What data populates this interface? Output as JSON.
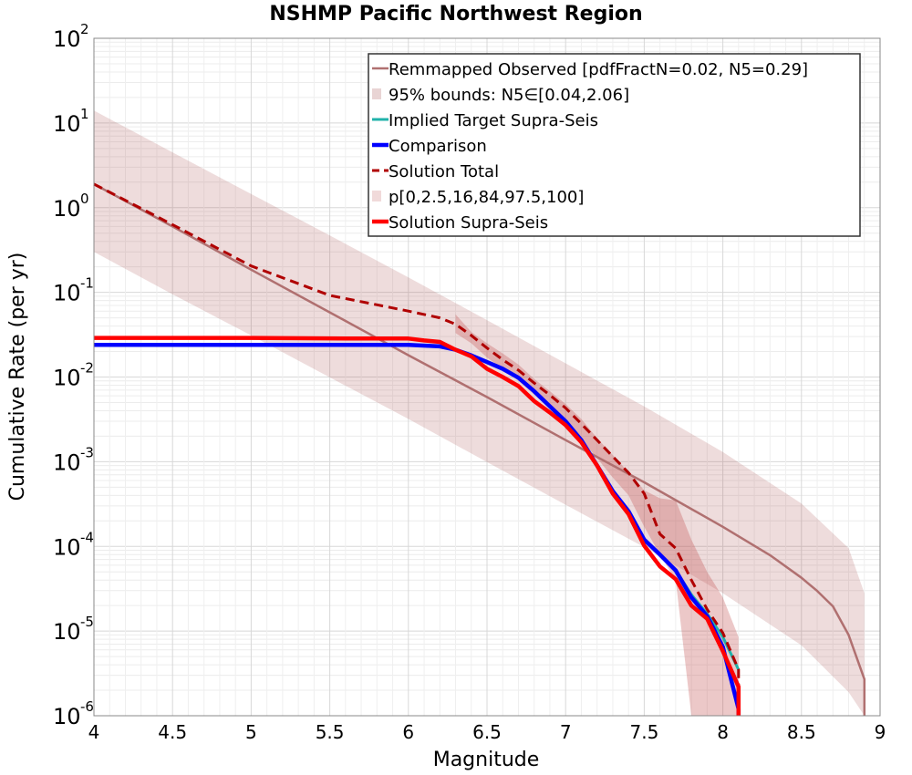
{
  "chart_data": {
    "type": "line",
    "title": "NSHMP Pacific Northwest Region",
    "xlabel": "Magnitude",
    "ylabel": "Cumulative Rate (per yr)",
    "xlim": [
      4,
      9
    ],
    "ylim": [
      1e-06,
      100
    ],
    "yscale": "log",
    "x_ticks": [
      "4",
      "4.5",
      "5",
      "5.5",
      "6",
      "6.5",
      "7",
      "7.5",
      "8",
      "8.5",
      "9"
    ],
    "y_ticks": [
      {
        "base": "10",
        "exp": "-6"
      },
      {
        "base": "10",
        "exp": "-5"
      },
      {
        "base": "10",
        "exp": "-4"
      },
      {
        "base": "10",
        "exp": "-3"
      },
      {
        "base": "10",
        "exp": "-2"
      },
      {
        "base": "10",
        "exp": "-1"
      },
      {
        "base": "10",
        "exp": "0"
      },
      {
        "base": "10",
        "exp": "1"
      },
      {
        "base": "10",
        "exp": "2"
      }
    ],
    "grid": true,
    "legend_position": "top-right",
    "bands": [
      {
        "legend": "95% bounds: N5∈[0.04,2.06]",
        "color": "#b06060",
        "opacity": 0.22,
        "x": [
          4.0,
          4.5,
          5.0,
          5.5,
          6.0,
          6.5,
          7.0,
          7.5,
          8.0,
          8.5,
          8.8,
          8.9
        ],
        "upper": [
          14,
          4.5,
          1.45,
          0.47,
          0.15,
          0.047,
          0.0145,
          0.0045,
          0.0013,
          0.00032,
          9.5e-05,
          2.8e-05
        ],
        "lower": [
          0.3,
          0.095,
          0.031,
          0.0099,
          0.0032,
          0.00099,
          0.00031,
          9.8e-05,
          2.8e-05,
          6.8e-06,
          1.9e-06,
          1e-06
        ]
      },
      {
        "legend": "p[0,2.5,16,84,97.5,100]",
        "color": "#c04848",
        "opacity": 0.3,
        "x": [
          6.3,
          6.4,
          6.5,
          6.6,
          6.7,
          6.8,
          6.9,
          7.0,
          7.1,
          7.2,
          7.3,
          7.4,
          7.5,
          7.6,
          7.7,
          7.8,
          7.9,
          8.0,
          8.1
        ],
        "upper": [
          0.055,
          0.034,
          0.025,
          0.019,
          0.014,
          0.0095,
          0.0068,
          0.0048,
          0.0032,
          0.0019,
          0.0012,
          0.00075,
          0.00046,
          0.00037,
          0.00035,
          0.00012,
          5e-05,
          2.5e-05,
          8.5e-06
        ],
        "lower": [
          0.033,
          0.025,
          0.017,
          0.0125,
          0.009,
          0.0062,
          0.0042,
          0.0029,
          0.0018,
          0.0011,
          0.00065,
          0.0004,
          0.00017,
          8e-05,
          4e-05,
          1e-06,
          1e-06,
          1e-06,
          1e-06
        ]
      }
    ],
    "series": [
      {
        "name": "Remmapped Observed [pdfFractN=0.02, N5=0.29]",
        "color": "#b07070",
        "width": 2.5,
        "dash": "",
        "x": [
          4.0,
          4.5,
          5.0,
          5.5,
          6.0,
          6.5,
          7.0,
          7.5,
          8.0,
          8.3,
          8.5,
          8.6,
          8.7,
          8.8,
          8.9,
          8.9
        ],
        "y": [
          1.9,
          0.6,
          0.185,
          0.058,
          0.0181,
          0.0058,
          0.0018,
          0.00057,
          0.00017,
          7.88e-05,
          4.26e-05,
          2.98e-05,
          1.96e-05,
          9e-06,
          2.7e-06,
          1e-06
        ]
      },
      {
        "name": "Implied Target Supra-Seis",
        "color": "#20b2aa",
        "width": 3,
        "dash": "",
        "x": [
          4.0,
          5.0,
          6.0,
          6.2,
          6.3,
          6.4,
          6.5,
          6.6,
          6.7,
          6.8,
          6.9,
          7.0,
          7.1,
          7.2,
          7.3,
          7.4,
          7.5,
          7.6,
          7.7,
          7.8,
          7.9,
          8.0,
          8.1
        ],
        "y": [
          0.024,
          0.024,
          0.024,
          0.023,
          0.021,
          0.018,
          0.015,
          0.0125,
          0.0098,
          0.0068,
          0.0045,
          0.003,
          0.0018,
          0.0009,
          0.00045,
          0.00026,
          0.00012,
          8e-05,
          5.2e-05,
          2.7e-05,
          1.6e-05,
          8.5e-06,
          3.5e-06
        ]
      },
      {
        "name": "Comparison",
        "color": "#0000ff",
        "width": 4.5,
        "dash": "",
        "x": [
          4.0,
          5.0,
          6.0,
          6.2,
          6.3,
          6.4,
          6.5,
          6.6,
          6.7,
          6.8,
          6.9,
          7.0,
          7.1,
          7.2,
          7.3,
          7.4,
          7.5,
          7.6,
          7.7,
          7.8,
          7.9,
          8.0,
          8.1,
          8.1
        ],
        "y": [
          0.024,
          0.024,
          0.024,
          0.023,
          0.021,
          0.018,
          0.015,
          0.0125,
          0.0098,
          0.0068,
          0.0045,
          0.003,
          0.0018,
          0.0009,
          0.00045,
          0.00026,
          0.00012,
          8e-05,
          5.2e-05,
          2.5e-05,
          1.5e-05,
          6.5e-06,
          1.2e-06,
          1e-06
        ]
      },
      {
        "name": "Solution Total",
        "color": "#b00000",
        "width": 3,
        "dash": "10,6",
        "x": [
          4.0,
          4.5,
          5.0,
          5.5,
          6.0,
          6.2,
          6.3,
          6.4,
          6.5,
          6.6,
          6.7,
          6.8,
          6.9,
          7.0,
          7.1,
          7.2,
          7.3,
          7.4,
          7.5,
          7.6,
          7.7,
          7.8,
          7.9,
          8.0,
          8.1,
          8.1
        ],
        "y": [
          1.9,
          0.63,
          0.205,
          0.092,
          0.06,
          0.05,
          0.042,
          0.031,
          0.022,
          0.016,
          0.012,
          0.0085,
          0.0061,
          0.0043,
          0.0028,
          0.0018,
          0.00115,
          0.00074,
          0.00042,
          0.00014,
          9.5e-05,
          4e-05,
          1.8e-05,
          9.5e-06,
          3.5e-06,
          1e-06
        ]
      },
      {
        "name": "Solution Supra-Seis",
        "color": "#ff0000",
        "width": 4.5,
        "dash": "",
        "x": [
          4.0,
          5.0,
          5.6,
          6.0,
          6.1,
          6.2,
          6.3,
          6.4,
          6.5,
          6.6,
          6.7,
          6.8,
          6.9,
          7.0,
          7.1,
          7.2,
          7.3,
          7.4,
          7.5,
          7.6,
          7.7,
          7.8,
          7.9,
          8.0,
          8.1,
          8.1
        ],
        "y": [
          0.029,
          0.029,
          0.0285,
          0.0285,
          0.027,
          0.026,
          0.021,
          0.0175,
          0.0125,
          0.01,
          0.0078,
          0.0052,
          0.0038,
          0.0027,
          0.0017,
          0.0009,
          0.00042,
          0.00024,
          0.000102,
          5.8e-05,
          4.1e-05,
          2e-05,
          1.4e-05,
          5.8e-06,
          2.2e-06,
          1e-06
        ]
      }
    ],
    "legend": [
      {
        "label": "Remmapped Observed [pdfFractN=0.02, N5=0.29]",
        "kind": "line",
        "color": "#b07070",
        "width": 2.5,
        "dash": ""
      },
      {
        "label": "95% bounds: N5∈[0.04,2.06]",
        "kind": "patch",
        "color": "#e9d4d4"
      },
      {
        "label": "Implied Target Supra-Seis",
        "kind": "line",
        "color": "#20b2aa",
        "width": 3,
        "dash": ""
      },
      {
        "label": "Comparison",
        "kind": "line",
        "color": "#0000ff",
        "width": 4.5,
        "dash": ""
      },
      {
        "label": "Solution Total",
        "kind": "line",
        "color": "#b00000",
        "width": 3,
        "dash": "8,5"
      },
      {
        "label": "p[0,2.5,16,84,97.5,100]",
        "kind": "patch",
        "color": "#f1dada"
      },
      {
        "label": "Solution Supra-Seis",
        "kind": "line",
        "color": "#ff0000",
        "width": 4.5,
        "dash": ""
      }
    ]
  }
}
